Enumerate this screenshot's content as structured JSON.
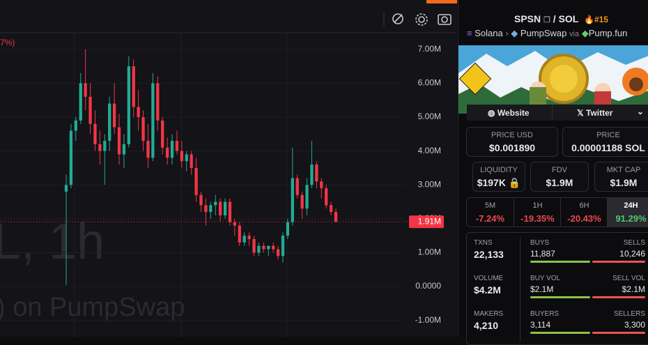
{
  "chart_data": {
    "type": "candlestick",
    "open": [
      2.8,
      3.0,
      4.6,
      4.9,
      6.0,
      5.6,
      4.8,
      4.2,
      4.0,
      4.3,
      5.4,
      4.7,
      3.9,
      4.2,
      6.5,
      5.3,
      5.0,
      4.3,
      3.8,
      6.0,
      4.9,
      4.1,
      3.8,
      4.3,
      4.0,
      3.7,
      3.9,
      3.5,
      2.7,
      2.4,
      2.2,
      2.4,
      2.5,
      2.1,
      2.5,
      1.9,
      1.8,
      1.3,
      1.5,
      1.4,
      1.0,
      1.2,
      1.1,
      1.2,
      1.1,
      0.9,
      1.5,
      1.9,
      3.2,
      2.7,
      2.3,
      3.0,
      3.6,
      3.1,
      2.9,
      2.4,
      2.2
    ],
    "high": [
      3.3,
      4.8,
      5.0,
      6.3,
      7.0,
      6.0,
      5.2,
      4.6,
      4.5,
      5.6,
      6.0,
      5.1,
      4.5,
      6.8,
      6.7,
      5.8,
      5.2,
      4.8,
      6.3,
      6.2,
      5.0,
      4.4,
      4.5,
      4.6,
      4.3,
      4.0,
      4.0,
      3.8,
      2.8,
      2.6,
      2.5,
      2.7,
      2.6,
      2.6,
      2.6,
      2.0,
      1.9,
      1.6,
      1.6,
      1.5,
      1.3,
      1.3,
      1.2,
      1.3,
      1.2,
      1.6,
      2.0,
      4.1,
      3.3,
      2.8,
      3.2,
      4.3,
      3.7,
      3.2,
      3.0,
      2.5,
      2.3
    ],
    "low": [
      0.05,
      2.9,
      4.3,
      4.8,
      5.2,
      4.5,
      4.0,
      3.6,
      3.0,
      4.0,
      4.5,
      3.6,
      3.5,
      4.1,
      5.0,
      4.6,
      4.0,
      3.5,
      3.7,
      4.6,
      3.9,
      3.6,
      3.6,
      3.9,
      3.5,
      3.4,
      3.3,
      2.5,
      2.2,
      1.8,
      2.0,
      2.1,
      1.9,
      2.0,
      1.8,
      1.5,
      1.2,
      1.2,
      1.2,
      0.9,
      0.9,
      1.0,
      0.9,
      1.0,
      0.8,
      0.7,
      1.4,
      1.8,
      2.6,
      2.0,
      2.1,
      2.9,
      2.9,
      2.6,
      2.3,
      2.1,
      1.9
    ],
    "close": [
      3.0,
      4.6,
      4.9,
      6.0,
      5.6,
      4.8,
      4.2,
      4.0,
      4.3,
      5.4,
      4.7,
      3.9,
      4.2,
      6.5,
      5.3,
      5.0,
      4.3,
      3.8,
      6.0,
      4.9,
      4.1,
      3.8,
      4.3,
      4.0,
      3.7,
      3.9,
      3.5,
      2.7,
      2.4,
      2.2,
      2.4,
      2.5,
      2.1,
      2.5,
      1.9,
      1.8,
      1.3,
      1.5,
      1.4,
      1.0,
      1.2,
      1.1,
      1.2,
      1.1,
      0.9,
      1.5,
      1.9,
      3.2,
      2.7,
      2.3,
      3.0,
      3.6,
      3.1,
      2.9,
      2.4,
      2.2,
      1.91
    ],
    "up_color": "#22ab94",
    "down_color": "#f23645",
    "ylim": [
      -1.48,
      7.49
    ],
    "yticks": [
      {
        "value": 7,
        "label": "7.00M"
      },
      {
        "value": 6,
        "label": "6.00M"
      },
      {
        "value": 5,
        "label": "5.00M"
      },
      {
        "value": 4,
        "label": "4.00M"
      },
      {
        "value": 3,
        "label": "3.00M"
      },
      {
        "value": 2,
        "label": "2.00M"
      },
      {
        "value": 1,
        "label": "1.00M"
      },
      {
        "value": 0,
        "label": "0.0000"
      },
      {
        "value": -1,
        "label": "-1.00M"
      }
    ],
    "grid": true,
    "last_price": {
      "value": 1.91,
      "label": "1.91M"
    },
    "change_label": "7%)",
    "watermark": [
      "L, 1h",
      ") on PumpSwap"
    ]
  },
  "header": {
    "symbol": "SPSN",
    "separator": "/",
    "quote": "SOL",
    "rank": "#15"
  },
  "breadcrumb": {
    "chain": "Solana",
    "dex": "PumpSwap",
    "via": "via",
    "launchpad": "Pump.fun"
  },
  "links": {
    "website": "Website",
    "twitter": "Twitter"
  },
  "prices": {
    "usd_label": "PRICE USD",
    "usd": "$0.001890",
    "native_label": "PRICE",
    "native": "0.00001188 SOL"
  },
  "metrics": [
    {
      "label": "LIQUIDITY",
      "value": "$197K"
    },
    {
      "label": "FDV",
      "value": "$1.9M"
    },
    {
      "label": "MKT CAP",
      "value": "$1.9M"
    }
  ],
  "changes": [
    {
      "period": "5M",
      "change": "-7.24%"
    },
    {
      "period": "1H",
      "change": "-19.35%"
    },
    {
      "period": "6H",
      "change": "-20.43%"
    },
    {
      "period": "24H",
      "change": "91.29%"
    }
  ],
  "stats": {
    "txns_label": "TXNS",
    "txns": "22,133",
    "buys_label": "BUYS",
    "buys": "11,887",
    "sells_label": "SELLS",
    "sells": "10,246",
    "volume_label": "VOLUME",
    "volume": "$4.2M",
    "buy_vol_label": "BUY VOL",
    "buy_vol": "$2.1M",
    "sell_vol_label": "SELL VOL",
    "sell_vol": "$2.1M",
    "makers_label": "MAKERS",
    "makers": "4,210",
    "buyers_label": "BUYERS",
    "buyers": "3,114",
    "sellers_label": "SELLERS",
    "sellers": "3,300"
  }
}
